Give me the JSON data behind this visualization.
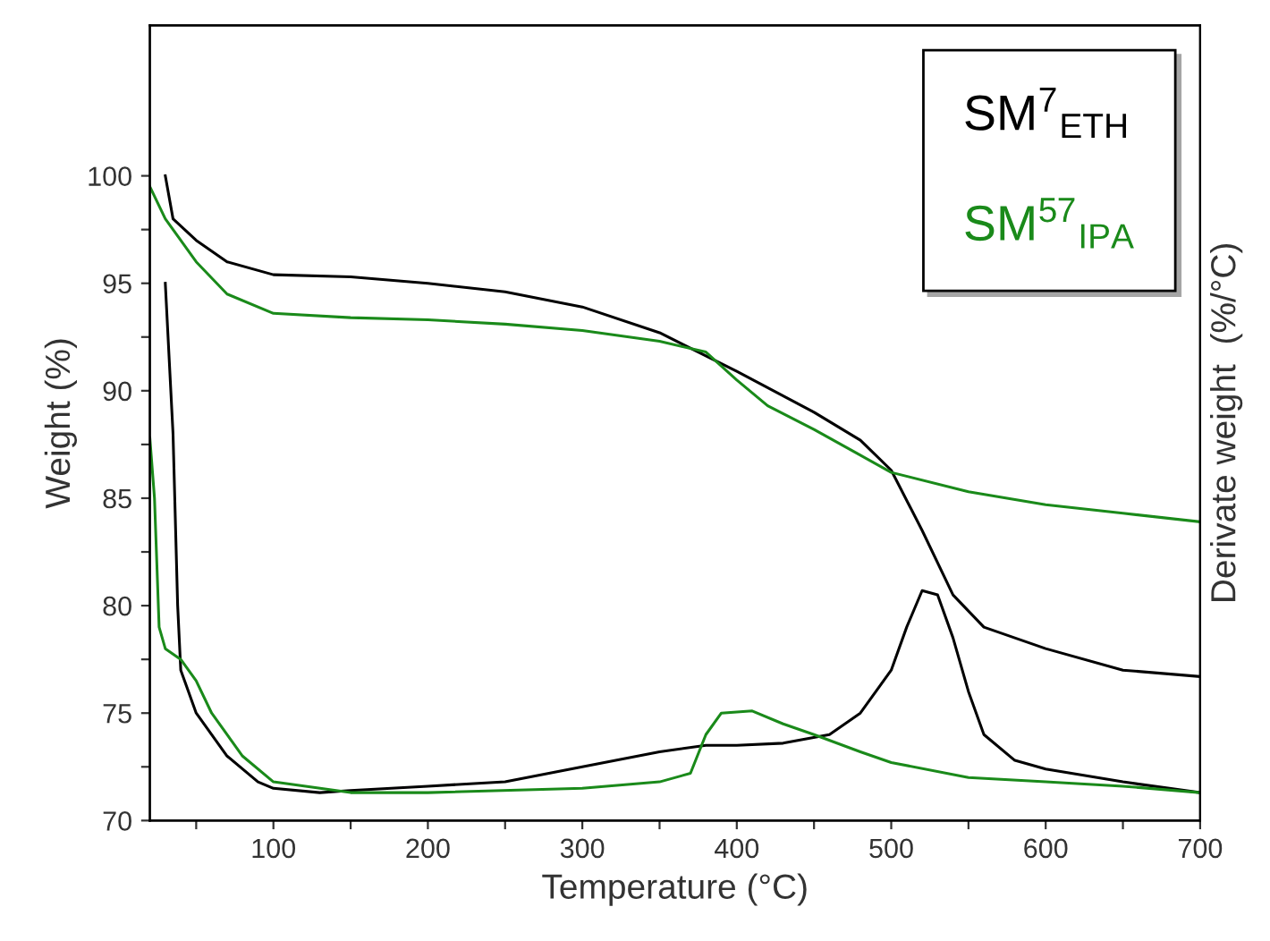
{
  "chart_data": {
    "type": "line",
    "xlabel": "Temperature (°C)",
    "ylabel": "Weight (%)",
    "y2label": "Derivate weight  (%/°C)",
    "xlim": [
      20,
      700
    ],
    "xticks": [
      {
        "value": 50,
        "label": null
      },
      100,
      {
        "value": 150,
        "label": null
      },
      200,
      {
        "value": 250,
        "label": null
      },
      300,
      {
        "value": 350,
        "label": null
      },
      400,
      {
        "value": 450,
        "label": null
      },
      500,
      {
        "value": 550,
        "label": null
      },
      600,
      {
        "value": 650,
        "label": null
      },
      700
    ],
    "ylim": [
      70,
      107
    ],
    "yticks": [
      70,
      {
        "value": 72.5,
        "label": null
      },
      75,
      {
        "value": 77.5,
        "label": null
      },
      80,
      {
        "value": 82.5,
        "label": null
      },
      85,
      {
        "value": 87.5,
        "label": null
      },
      90,
      {
        "value": 92.5,
        "label": null
      },
      95,
      {
        "value": 97.5,
        "label": null
      },
      100
    ],
    "grid": false,
    "legend": "top right",
    "marker": "none",
    "line_style": "solid",
    "series": [
      {
        "name": "SM$^{7}$$_{ETH}$",
        "color": "#000000",
        "x": [
          30,
          35,
          50,
          70,
          100,
          150,
          200,
          250,
          300,
          350,
          400,
          450,
          480,
          500,
          520,
          540,
          560,
          600,
          650,
          700
        ],
        "values": [
          100,
          98,
          97,
          96,
          95.4,
          95.3,
          95.0,
          94.6,
          93.9,
          92.7,
          90.9,
          89.0,
          87.7,
          86.3,
          83.5,
          80.5,
          79.0,
          78.0,
          77.0,
          76.7
        ]
      },
      {
        "name": "SM$^{57}$$_{IPA}$",
        "color": "#1a8a1a",
        "x": [
          20,
          30,
          50,
          70,
          100,
          150,
          200,
          250,
          300,
          350,
          380,
          400,
          420,
          450,
          480,
          500,
          550,
          600,
          650,
          700
        ],
        "values": [
          99.5,
          98,
          96,
          94.5,
          93.6,
          93.4,
          93.3,
          93.1,
          92.8,
          92.3,
          91.8,
          90.5,
          89.3,
          88.2,
          87.0,
          86.2,
          85.3,
          84.7,
          84.3,
          83.9
        ]
      },
      {
        "color": "#000000",
        "x": [
          30,
          35,
          38,
          40,
          50,
          70,
          90,
          100,
          130,
          150,
          200,
          250,
          300,
          350,
          380,
          400,
          430,
          460,
          480,
          500,
          510,
          520,
          530,
          540,
          550,
          560,
          580,
          600,
          650,
          700
        ],
        "values": [
          95,
          88,
          80,
          77,
          75,
          73,
          71.8,
          71.5,
          71.3,
          71.4,
          71.6,
          71.8,
          72.5,
          73.2,
          73.5,
          73.5,
          73.6,
          74.0,
          75.0,
          77.0,
          79,
          80.7,
          80.5,
          78.5,
          76,
          74,
          72.8,
          72.4,
          71.8,
          71.3
        ]
      },
      {
        "color": "#1a8a1a",
        "x": [
          20,
          23,
          26,
          30,
          40,
          50,
          60,
          80,
          100,
          150,
          200,
          300,
          350,
          370,
          380,
          390,
          410,
          430,
          450,
          480,
          500,
          550,
          600,
          650,
          700
        ],
        "values": [
          87.8,
          85,
          79,
          78,
          77.5,
          76.5,
          75,
          73,
          71.8,
          71.3,
          71.3,
          71.5,
          71.8,
          72.2,
          74,
          75,
          75.1,
          74.5,
          74,
          73.2,
          72.7,
          72.0,
          71.8,
          71.6,
          71.3
        ]
      }
    ]
  }
}
